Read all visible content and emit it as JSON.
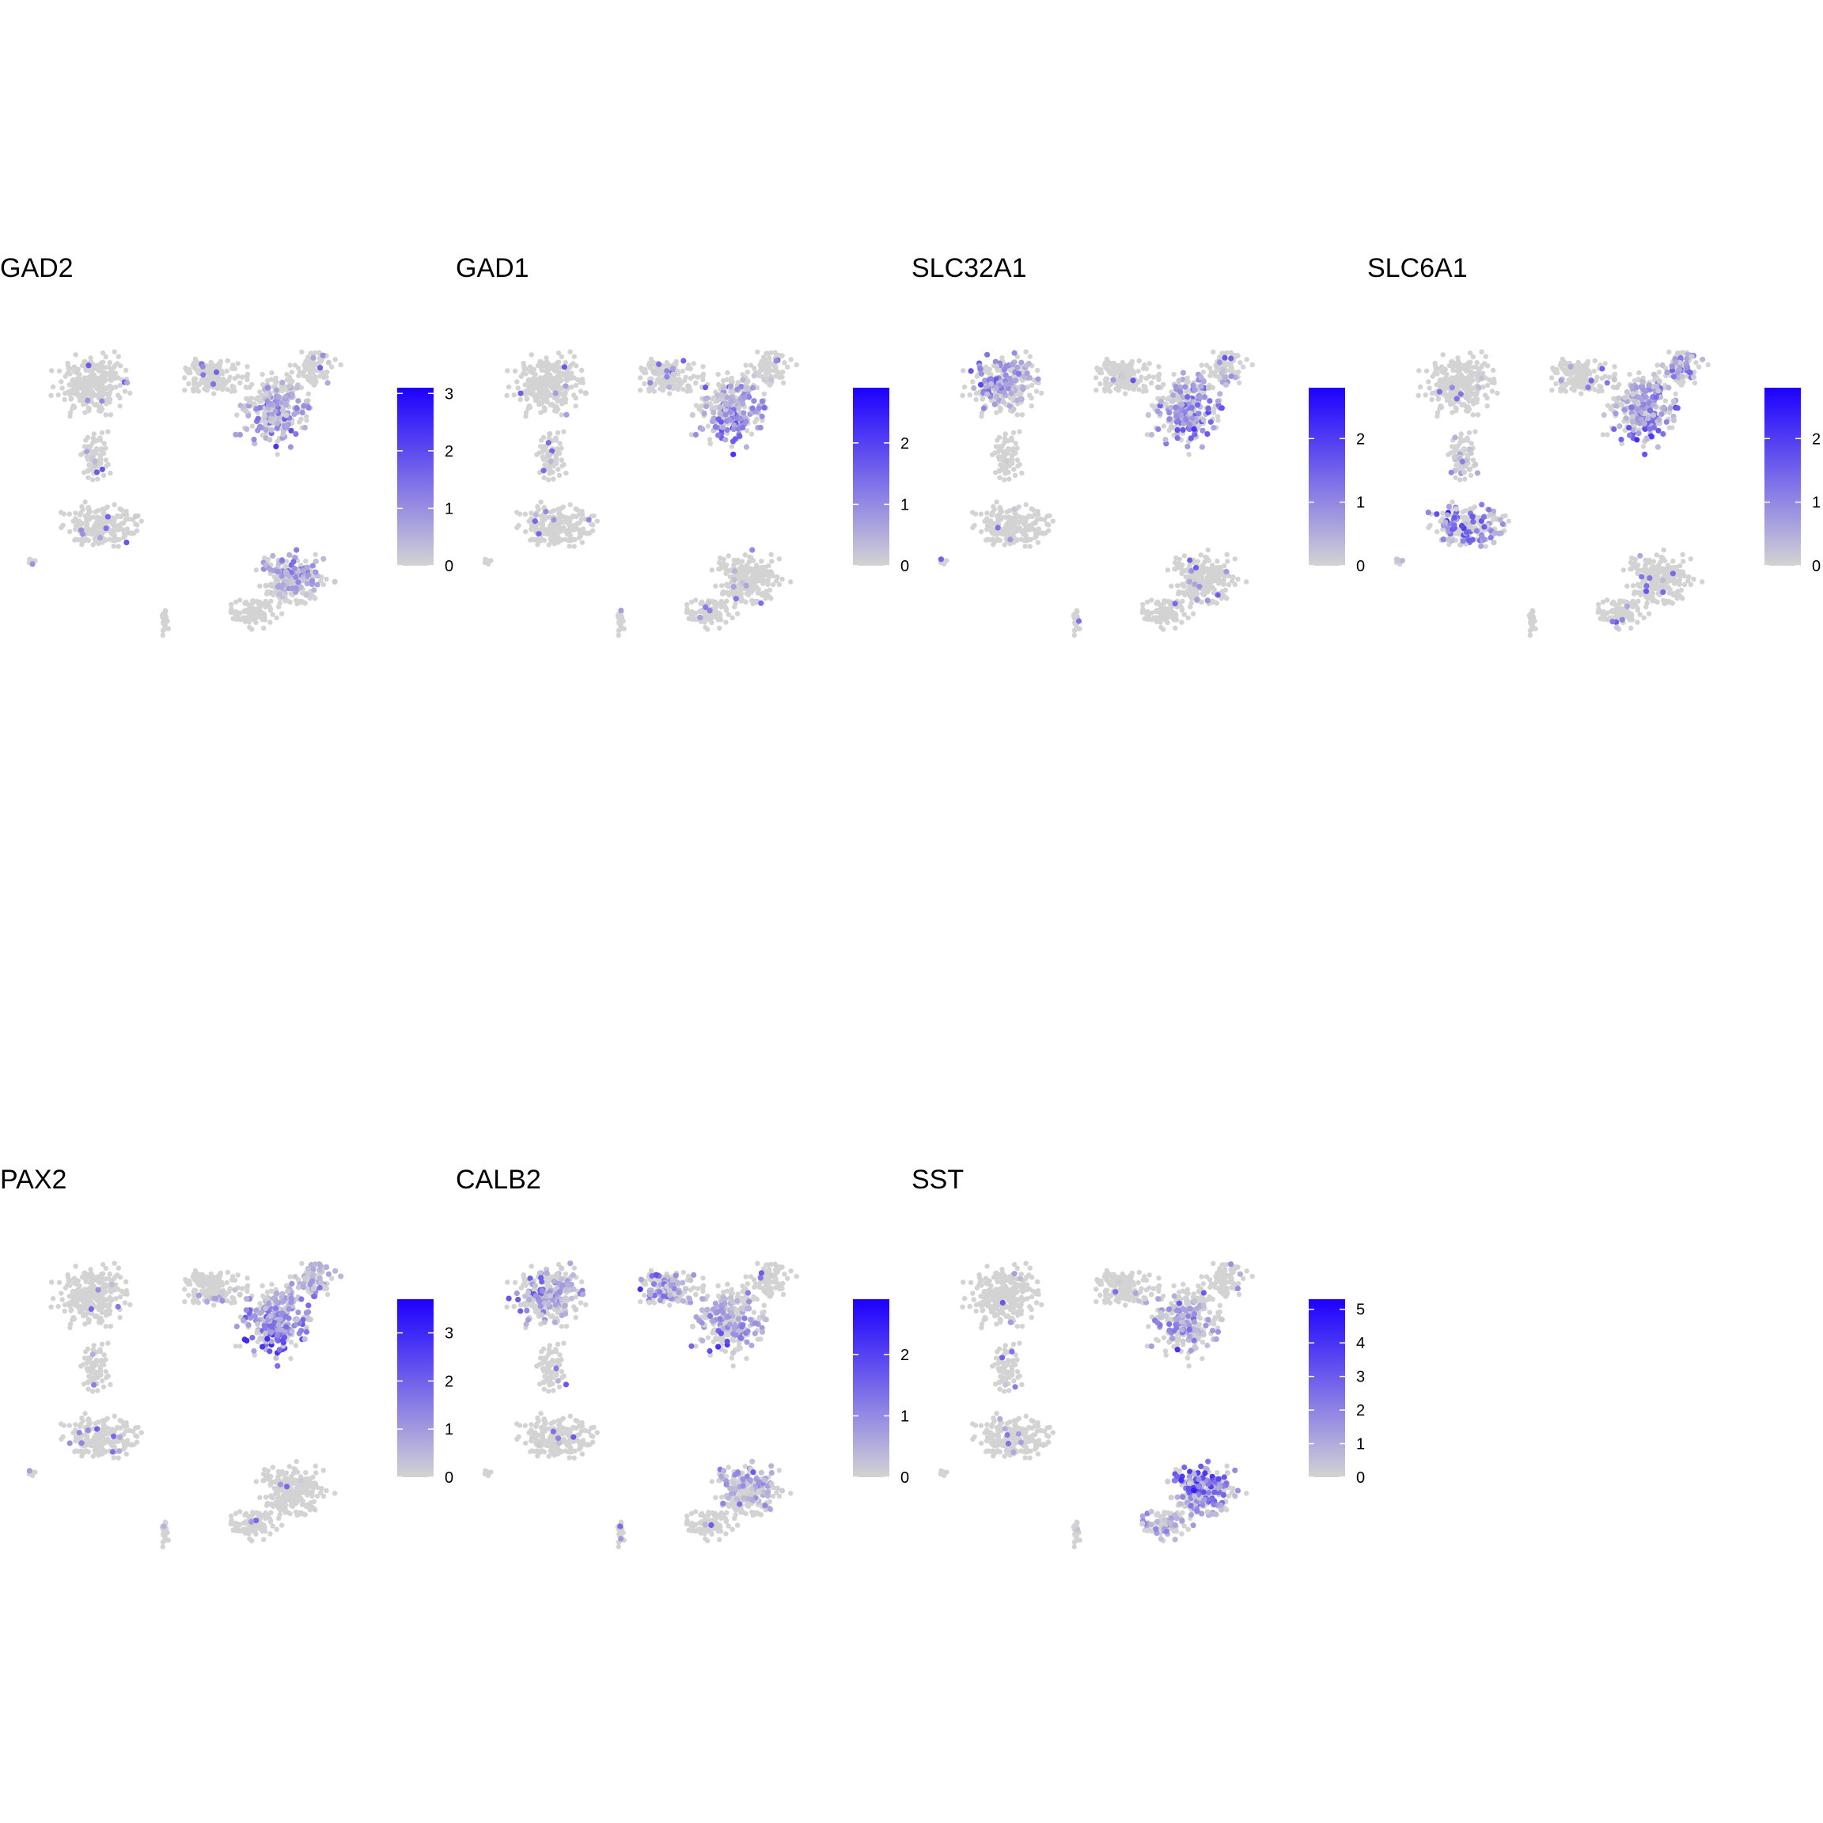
{
  "chart_data": {
    "type": "scatter",
    "description_free": true,
    "color_low": "#d3d3d3",
    "color_high": "#1c00ff",
    "panels": [
      {
        "title": "GAD2",
        "ticks": [
          "0",
          "1",
          "2",
          "3"
        ],
        "tick_values": [
          0,
          1,
          2,
          3
        ],
        "max": 3.1,
        "hot": [
          [
            0.78,
            0.4
          ],
          [
            0.7,
            0.5
          ],
          [
            0.8,
            0.62
          ],
          [
            0.6,
            0.55
          ]
        ]
      },
      {
        "title": "GAD1",
        "ticks": [
          "0",
          "1",
          "2"
        ],
        "tick_values": [
          0,
          1,
          2
        ],
        "max": 2.9,
        "hot": [
          [
            0.75,
            0.45
          ],
          [
            0.8,
            0.38
          ]
        ]
      },
      {
        "title": "SLC32A1",
        "ticks": [
          "0",
          "1",
          "2"
        ],
        "tick_values": [
          0,
          1,
          2
        ],
        "max": 2.8,
        "hot": [
          [
            0.72,
            0.45
          ],
          [
            0.8,
            0.35
          ],
          [
            0.1,
            0.15
          ]
        ]
      },
      {
        "title": "SLC6A1",
        "ticks": [
          "0",
          "1",
          "2"
        ],
        "tick_values": [
          0,
          1,
          2
        ],
        "max": 2.8,
        "hot": [
          [
            0.75,
            0.4
          ],
          [
            0.9,
            0.25
          ],
          [
            0.2,
            0.58
          ]
        ]
      },
      {
        "title": "PAX2",
        "ticks": [
          "0",
          "1",
          "2",
          "3"
        ],
        "tick_values": [
          0,
          1,
          2,
          3
        ],
        "max": 3.7,
        "hot": [
          [
            0.78,
            0.4
          ],
          [
            0.92,
            0.3
          ],
          [
            0.7,
            0.35
          ]
        ]
      },
      {
        "title": "CALB2",
        "ticks": [
          "0",
          "1",
          "2"
        ],
        "tick_values": [
          0,
          1,
          2
        ],
        "max": 2.9,
        "hot": [
          [
            0.7,
            0.4
          ],
          [
            0.45,
            0.15
          ],
          [
            0.1,
            0.15
          ],
          [
            0.8,
            0.6
          ]
        ]
      },
      {
        "title": "SST",
        "ticks": [
          "0",
          "1",
          "2",
          "3",
          "4",
          "5"
        ],
        "tick_values": [
          0,
          1,
          2,
          3,
          4,
          5
        ],
        "max": 5.3,
        "hot": [
          [
            0.8,
            0.7
          ],
          [
            0.75,
            0.78
          ],
          [
            0.7,
            0.4
          ]
        ]
      }
    ]
  }
}
